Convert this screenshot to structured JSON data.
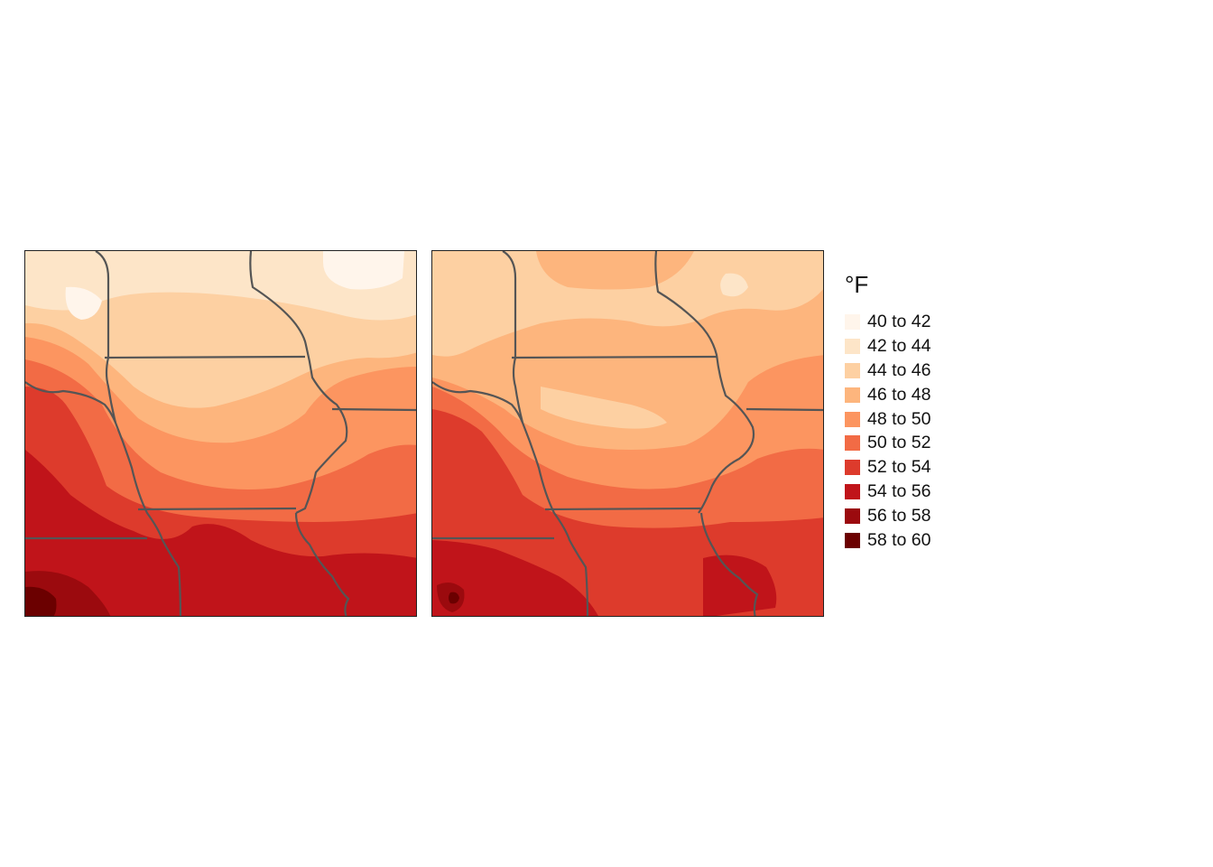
{
  "legend": {
    "title": "°F",
    "items": [
      {
        "label": "40 to 42",
        "color": "#fff5eb"
      },
      {
        "label": "42 to 44",
        "color": "#fde5c8"
      },
      {
        "label": "44 to 46",
        "color": "#fdd0a2"
      },
      {
        "label": "46 to 48",
        "color": "#fdb57d"
      },
      {
        "label": "48 to 50",
        "color": "#fc9560"
      },
      {
        "label": "50 to 52",
        "color": "#f26b45"
      },
      {
        "label": "52 to 54",
        "color": "#dd3b2c"
      },
      {
        "label": "54 to 56",
        "color": "#c0141a"
      },
      {
        "label": "56 to 58",
        "color": "#9b0a0e"
      },
      {
        "label": "58 to 60",
        "color": "#6b0000"
      }
    ]
  },
  "maps": [
    {
      "name": "left-map"
    },
    {
      "name": "right-map"
    }
  ],
  "border_color": "#555555"
}
